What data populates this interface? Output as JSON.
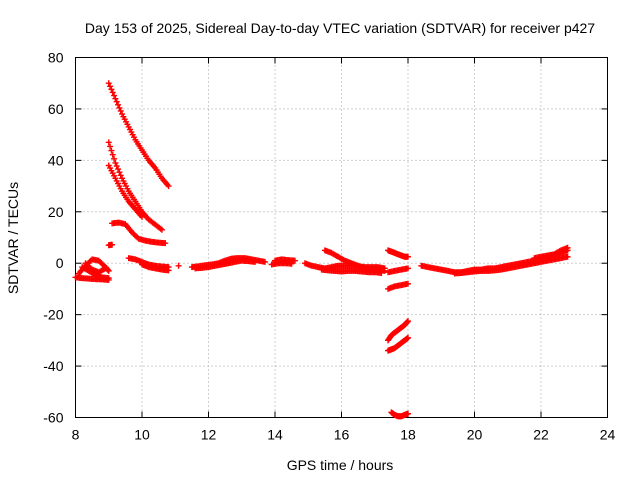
{
  "chart_data": {
    "type": "scatter",
    "title": "Day 153 of 2025, Sidereal Day-to-day VTEC variation (SDTVAR) for receiver p427",
    "xlabel": "GPS time / hours",
    "ylabel": "SDTVAR / TECUs",
    "xlim": [
      8,
      24
    ],
    "ylim": [
      -60,
      80
    ],
    "xticks": [
      8,
      10,
      12,
      14,
      16,
      18,
      20,
      22,
      24
    ],
    "yticks": [
      -60,
      -40,
      -20,
      0,
      20,
      40,
      60,
      80
    ],
    "grid": true,
    "marker": "+",
    "color": "#ff0000",
    "series": [
      {
        "name": "track-low-left",
        "x": [
          8.0,
          8.2,
          8.4,
          8.6,
          8.8,
          9.0
        ],
        "y": [
          -5.5,
          -5.8,
          -6.0,
          -6.2,
          -6.3,
          -6.5
        ]
      },
      {
        "name": "track-hump-left",
        "x": [
          8.1,
          8.3,
          8.5,
          8.7,
          8.9,
          9.0
        ],
        "y": [
          -4.0,
          -1.0,
          1.5,
          1.0,
          -1.5,
          -3.0
        ]
      },
      {
        "name": "track-loop-left",
        "x": [
          8.3,
          8.5,
          8.7,
          8.9
        ],
        "y": [
          0.0,
          -2.5,
          -3.5,
          -2.0
        ]
      },
      {
        "name": "track-mid-left",
        "x": [
          8.2,
          8.4,
          8.6,
          8.8,
          9.0
        ],
        "y": [
          -1.5,
          -3.0,
          -4.5,
          -5.5,
          -5.8
        ]
      },
      {
        "name": "track-top",
        "x": [
          9.0,
          9.2,
          9.4,
          9.6,
          9.8,
          10.0,
          10.2,
          10.4,
          10.6,
          10.8
        ],
        "y": [
          70,
          64,
          58,
          53,
          48,
          44,
          40,
          37,
          33,
          30
        ]
      },
      {
        "name": "track-upper",
        "x": [
          9.0,
          9.2,
          9.4,
          9.6,
          9.8,
          10.0,
          10.2,
          10.4,
          10.6
        ],
        "y": [
          47,
          39,
          33,
          28,
          24,
          20,
          17,
          15,
          13
        ]
      },
      {
        "name": "track-upper-2",
        "x": [
          9.0,
          9.2,
          9.4,
          9.6,
          9.8,
          10.0
        ],
        "y": [
          38,
          33,
          28,
          24,
          21,
          18
        ]
      },
      {
        "name": "track-15",
        "x": [
          9.1,
          9.3,
          9.5,
          9.7,
          9.9,
          10.1,
          10.3,
          10.5,
          10.7
        ],
        "y": [
          15.5,
          15.8,
          15.2,
          12.0,
          9.5,
          8.8,
          8.3,
          8.0,
          7.8
        ]
      },
      {
        "name": "track-7",
        "x": [
          9.0,
          9.1
        ],
        "y": [
          7.0,
          7.2
        ]
      },
      {
        "name": "track-near-zero-1",
        "x": [
          9.6,
          9.8,
          10.0,
          10.2,
          10.4,
          10.6,
          10.8
        ],
        "y": [
          2.0,
          1.5,
          0.5,
          -0.5,
          -1.0,
          -1.3,
          -1.5
        ]
      },
      {
        "name": "track-near-zero-2",
        "x": [
          10.0,
          10.2,
          10.4,
          10.6,
          10.8
        ],
        "y": [
          -0.5,
          -1.5,
          -2.0,
          -2.5,
          -2.8
        ]
      },
      {
        "name": "track-isolated",
        "x": [
          11.1
        ],
        "y": [
          -1.0
        ]
      },
      {
        "name": "track-band-1",
        "x": [
          11.5,
          11.7,
          11.9,
          12.1,
          12.3,
          12.5,
          12.7,
          12.9,
          13.1,
          13.3,
          13.5,
          13.7
        ],
        "y": [
          -1.5,
          -1.2,
          -0.8,
          -0.5,
          0.0,
          1.0,
          1.8,
          2.0,
          2.0,
          1.5,
          1.0,
          0.5
        ]
      },
      {
        "name": "track-band-2",
        "x": [
          11.6,
          11.8,
          12.0,
          12.2,
          12.4,
          12.6,
          12.8,
          13.0,
          13.2,
          13.4
        ],
        "y": [
          -2.0,
          -1.8,
          -1.5,
          -1.0,
          -0.5,
          0.0,
          0.5,
          1.0,
          0.8,
          0.5
        ]
      },
      {
        "name": "track-band-3",
        "x": [
          14.0,
          14.2,
          14.4,
          14.6
        ],
        "y": [
          1.0,
          1.5,
          1.2,
          1.0
        ]
      },
      {
        "name": "track-band-4",
        "x": [
          13.9,
          14.1,
          14.3,
          14.5
        ],
        "y": [
          -0.5,
          0.0,
          0.0,
          -0.2
        ]
      },
      {
        "name": "track-band-5",
        "x": [
          14.9,
          15.1,
          15.3,
          15.5,
          15.7,
          15.9,
          16.1,
          16.3,
          16.5,
          16.7,
          16.9,
          17.1,
          17.3
        ],
        "y": [
          0.0,
          -1.0,
          -1.5,
          -2.0,
          -1.5,
          -1.0,
          -1.0,
          -1.0,
          -1.2,
          -1.5,
          -1.5,
          -1.5,
          -2.0
        ]
      },
      {
        "name": "track-band-6",
        "x": [
          15.5,
          15.7,
          15.9,
          16.1,
          16.3,
          16.5,
          16.7,
          16.9,
          17.1,
          17.3
        ],
        "y": [
          5.0,
          4.0,
          2.5,
          1.0,
          0.0,
          -1.0,
          -2.0,
          -2.5,
          -2.5,
          -3.0
        ]
      },
      {
        "name": "track-band-7",
        "x": [
          15.4,
          15.6,
          15.8,
          16.0,
          16.2,
          16.4,
          16.6,
          16.8,
          17.0,
          17.2
        ],
        "y": [
          -2.5,
          -2.8,
          -3.0,
          -3.2,
          -3.0,
          -3.0,
          -3.2,
          -3.5,
          -3.5,
          -3.8
        ]
      },
      {
        "name": "track-17-zero",
        "x": [
          17.4,
          17.5,
          17.6,
          17.7,
          17.8,
          17.9,
          18.0
        ],
        "y": [
          5.0,
          4.5,
          4.0,
          3.5,
          3.0,
          2.5,
          2.5
        ]
      },
      {
        "name": "track-17-neg3",
        "x": [
          17.4,
          17.6,
          17.8,
          18.0
        ],
        "y": [
          -3.5,
          -3.0,
          -2.5,
          -2.0
        ]
      },
      {
        "name": "track-17-neg8",
        "x": [
          17.4,
          17.6,
          17.8,
          18.0
        ],
        "y": [
          -10.0,
          -9.0,
          -8.5,
          -8.0
        ]
      },
      {
        "name": "track-17-neg25",
        "x": [
          17.4,
          17.5,
          17.6,
          17.7,
          17.8,
          17.9,
          18.0
        ],
        "y": [
          -30.0,
          -28.0,
          -27.0,
          -26.0,
          -25.0,
          -24.0,
          -22.5
        ]
      },
      {
        "name": "track-17-neg32",
        "x": [
          17.4,
          17.5,
          17.6,
          17.7,
          17.8,
          17.9,
          18.0
        ],
        "y": [
          -34.0,
          -33.5,
          -33.0,
          -32.0,
          -31.0,
          -30.0,
          -29.0
        ]
      },
      {
        "name": "track-17-neg58",
        "x": [
          17.5,
          17.6,
          17.7,
          17.8,
          17.9,
          18.0
        ],
        "y": [
          -58.0,
          -59.0,
          -59.5,
          -59.5,
          -59.0,
          -58.5
        ]
      },
      {
        "name": "track-right-1",
        "x": [
          18.4,
          18.6,
          18.8,
          19.0,
          19.2,
          19.4,
          19.6,
          19.8,
          20.0,
          20.2,
          20.4,
          20.6,
          20.8,
          21.0,
          21.2,
          21.4,
          21.6,
          21.8,
          22.0,
          22.2,
          22.4,
          22.6,
          22.8
        ],
        "y": [
          -1.0,
          -1.5,
          -2.0,
          -2.5,
          -3.0,
          -3.5,
          -3.5,
          -3.0,
          -2.5,
          -2.5,
          -2.0,
          -2.0,
          -1.5,
          -1.0,
          -0.5,
          0.0,
          0.5,
          1.0,
          1.5,
          2.0,
          3.0,
          4.0,
          5.0
        ]
      },
      {
        "name": "track-right-2",
        "x": [
          19.4,
          19.6,
          19.8,
          20.0,
          20.2,
          20.4,
          20.6,
          20.8,
          21.0,
          21.2,
          21.4,
          21.6,
          21.8,
          22.0,
          22.2,
          22.4,
          22.6,
          22.8
        ],
        "y": [
          -4.0,
          -3.8,
          -3.5,
          -3.2,
          -3.0,
          -3.0,
          -2.8,
          -2.5,
          -2.0,
          -1.5,
          -1.0,
          -0.5,
          0.0,
          0.5,
          1.0,
          1.5,
          2.0,
          2.5
        ]
      },
      {
        "name": "track-right-3",
        "x": [
          21.8,
          22.0,
          22.2,
          22.4,
          22.6,
          22.8
        ],
        "y": [
          2.0,
          2.5,
          3.0,
          3.5,
          5.0,
          6.0
        ]
      }
    ]
  }
}
